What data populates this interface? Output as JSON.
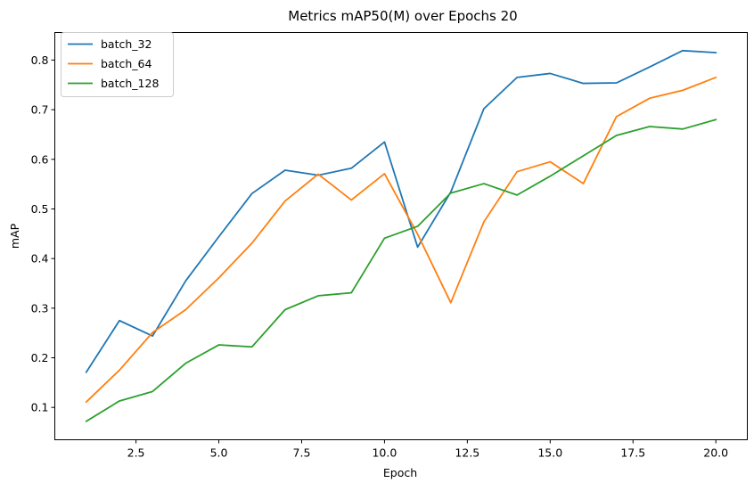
{
  "chart_data": {
    "type": "line",
    "title": "Metrics mAP50(M) over Epochs 20",
    "xlabel": "Epoch",
    "ylabel": "mAP",
    "xlim": [
      0.05,
      20.95
    ],
    "ylim": [
      0.0348,
      0.8555
    ],
    "grid": false,
    "legend_position": "top-left",
    "x": [
      1,
      2,
      3,
      4,
      5,
      6,
      7,
      8,
      9,
      10,
      11,
      12,
      13,
      14,
      15,
      16,
      17,
      18,
      19,
      20
    ],
    "x_ticks": [
      "2.5",
      "5.0",
      "7.5",
      "10.0",
      "12.5",
      "15.0",
      "17.5",
      "20.0"
    ],
    "y_ticks": [
      "0.1",
      "0.2",
      "0.3",
      "0.4",
      "0.5",
      "0.6",
      "0.7",
      "0.8"
    ],
    "series": [
      {
        "name": "batch_32",
        "color": "#1f77b4",
        "values": [
          0.171,
          0.275,
          0.244,
          0.355,
          0.444,
          0.531,
          0.578,
          0.568,
          0.582,
          0.635,
          0.423,
          0.534,
          0.702,
          0.765,
          0.773,
          0.753,
          0.754,
          0.786,
          0.819,
          0.815
        ]
      },
      {
        "name": "batch_64",
        "color": "#ff7f0e",
        "values": [
          0.111,
          0.175,
          0.251,
          0.297,
          0.361,
          0.431,
          0.516,
          0.57,
          0.518,
          0.571,
          0.449,
          0.311,
          0.474,
          0.575,
          0.595,
          0.551,
          0.686,
          0.723,
          0.739,
          0.765
        ]
      },
      {
        "name": "batch_128",
        "color": "#2ca02c",
        "values": [
          0.072,
          0.113,
          0.132,
          0.189,
          0.226,
          0.222,
          0.297,
          0.325,
          0.331,
          0.441,
          0.465,
          0.532,
          0.551,
          0.528,
          0.566,
          0.607,
          0.648,
          0.666,
          0.661,
          0.68
        ]
      }
    ]
  }
}
